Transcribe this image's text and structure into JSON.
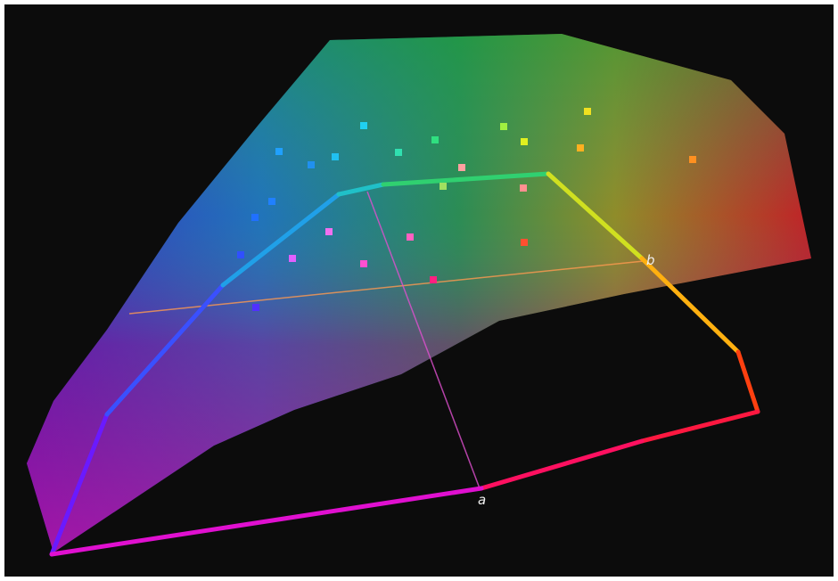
{
  "axes": {
    "b_label": "b",
    "a_label": "a"
  }
}
